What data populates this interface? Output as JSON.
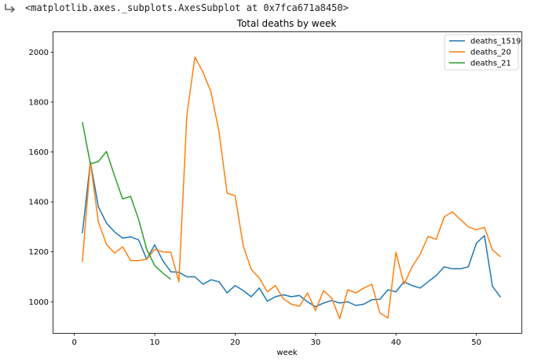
{
  "output": {
    "repr_text": "<matplotlib.axes._subplots.AxesSubplot at 0x7fca671a8450>",
    "icon": "output-arrow-icon"
  },
  "chart_data": {
    "type": "line",
    "title": "Total deaths by week",
    "xlabel": "week",
    "ylabel": "",
    "xlim": [
      -2.6,
      55.6
    ],
    "ylim": [
      875,
      2080
    ],
    "xticks": [
      0,
      10,
      20,
      30,
      40,
      50
    ],
    "yticks": [
      1000,
      1200,
      1400,
      1600,
      1800,
      2000
    ],
    "grid": false,
    "legend_position": "top-right",
    "series": [
      {
        "name": "deaths_1519",
        "color": "#1f77b4",
        "x": [
          1,
          2,
          3,
          4,
          5,
          6,
          7,
          8,
          9,
          10,
          11,
          12,
          13,
          14,
          15,
          16,
          17,
          18,
          19,
          20,
          21,
          22,
          23,
          24,
          25,
          26,
          27,
          28,
          29,
          30,
          31,
          32,
          33,
          34,
          35,
          36,
          37,
          38,
          39,
          40,
          41,
          42,
          43,
          44,
          45,
          46,
          47,
          48,
          49,
          50,
          51,
          52,
          53
        ],
        "values": [
          1275,
          1560,
          1380,
          1315,
          1280,
          1255,
          1260,
          1248,
          1170,
          1228,
          1165,
          1120,
          1118,
          1100,
          1100,
          1070,
          1088,
          1080,
          1035,
          1065,
          1045,
          1020,
          1055,
          1002,
          1020,
          1028,
          1020,
          1025,
          1000,
          980,
          995,
          1005,
          995,
          1000,
          985,
          990,
          1008,
          1010,
          1048,
          1040,
          1080,
          1065,
          1055,
          1080,
          1105,
          1140,
          1132,
          1132,
          1140,
          1235,
          1265,
          1062,
          1018
        ]
      },
      {
        "name": "deaths_20",
        "color": "#ff7f0e",
        "x": [
          1,
          2,
          3,
          4,
          5,
          6,
          7,
          8,
          9,
          10,
          11,
          12,
          13,
          14,
          15,
          16,
          17,
          18,
          19,
          20,
          21,
          22,
          23,
          24,
          25,
          26,
          27,
          28,
          29,
          30,
          31,
          32,
          33,
          34,
          35,
          36,
          37,
          38,
          39,
          40,
          41,
          42,
          43,
          44,
          45,
          46,
          47,
          48,
          49,
          50,
          51,
          52,
          53
        ],
        "values": [
          1160,
          1560,
          1320,
          1230,
          1195,
          1220,
          1165,
          1165,
          1170,
          1210,
          1200,
          1198,
          1080,
          1750,
          1980,
          1920,
          1840,
          1680,
          1435,
          1425,
          1225,
          1130,
          1095,
          1040,
          1065,
          1012,
          990,
          982,
          1035,
          965,
          1045,
          1015,
          932,
          1048,
          1035,
          1055,
          1070,
          955,
          935,
          1198,
          1070,
          1140,
          1190,
          1262,
          1250,
          1340,
          1360,
          1330,
          1300,
          1288,
          1298,
          1208,
          1180
        ]
      },
      {
        "name": "deaths_21",
        "color": "#2ca02c",
        "x": [
          1,
          2,
          3,
          4,
          5,
          6,
          7,
          8,
          9,
          10,
          11,
          12
        ],
        "values": [
          1720,
          1552,
          1562,
          1602,
          1505,
          1412,
          1422,
          1330,
          1210,
          1145,
          1115,
          1090
        ]
      }
    ]
  }
}
